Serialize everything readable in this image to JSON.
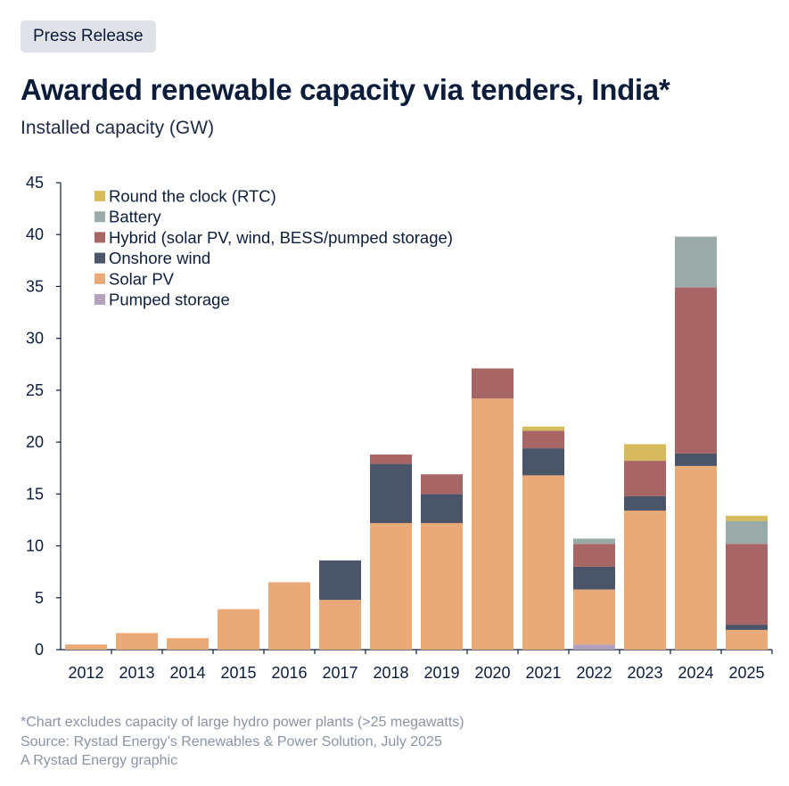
{
  "badge": "Press Release",
  "title": "Awarded renewable capacity via tenders, India*",
  "subtitle": "Installed capacity (GW)",
  "footer": {
    "note": "*Chart excludes capacity of large hydro power plants (>25 megawatts)",
    "source": "Source: Rystad Energy’s Renewables & Power Solution, July 2025",
    "credit": "A Rystad Energy graphic"
  },
  "chart_data": {
    "type": "bar",
    "stacked": true,
    "categories": [
      "2012",
      "2013",
      "2014",
      "2015",
      "2016",
      "2017",
      "2018",
      "2019",
      "2020",
      "2021",
      "2022",
      "2023",
      "2024",
      "2025"
    ],
    "ylim": [
      0,
      45
    ],
    "yticks": [
      0,
      5,
      10,
      15,
      20,
      25,
      30,
      35,
      40,
      45
    ],
    "legend_position": "top-left",
    "series": [
      {
        "name": "Pumped storage",
        "color": "#b3a0bf",
        "values": [
          0,
          0,
          0,
          0,
          0,
          0,
          0,
          0,
          0,
          0,
          0.5,
          0,
          0,
          0
        ]
      },
      {
        "name": "Solar PV",
        "color": "#eaaa78",
        "values": [
          0.5,
          1.6,
          1.1,
          3.9,
          6.5,
          4.8,
          12.2,
          12.2,
          24.2,
          16.8,
          5.3,
          13.4,
          17.7,
          1.9
        ]
      },
      {
        "name": "Onshore wind",
        "color": "#4a5569",
        "values": [
          0,
          0,
          0,
          0,
          0,
          3.8,
          5.7,
          2.8,
          0,
          2.6,
          2.2,
          1.4,
          1.2,
          0.5
        ]
      },
      {
        "name": "Hybrid (solar PV, wind, BESS/pumped storage)",
        "color": "#a86566",
        "values": [
          0,
          0,
          0,
          0,
          0,
          0,
          0.9,
          1.9,
          2.9,
          1.7,
          2.2,
          3.4,
          16.0,
          7.8
        ]
      },
      {
        "name": "Battery",
        "color": "#9aaaa9",
        "values": [
          0,
          0,
          0,
          0,
          0,
          0,
          0,
          0,
          0,
          0,
          0.5,
          0,
          4.9,
          2.2
        ]
      },
      {
        "name": "Round the clock (RTC)",
        "color": "#d6bb5c",
        "values": [
          0,
          0,
          0,
          0,
          0,
          0,
          0,
          0,
          0,
          0.4,
          0,
          1.6,
          0,
          0.5
        ]
      }
    ],
    "legend_order": [
      "Round the clock (RTC)",
      "Battery",
      "Hybrid (solar PV, wind, BESS/pumped storage)",
      "Onshore wind",
      "Solar PV",
      "Pumped storage"
    ]
  }
}
